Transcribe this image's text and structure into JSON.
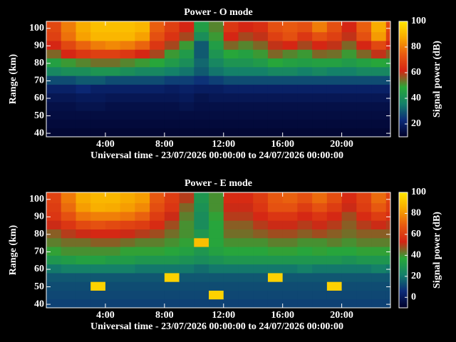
{
  "chart_data": [
    {
      "type": "heatmap",
      "title": "Power - O mode",
      "x_label": "Universal time - 23/07/2026 00:00:00 to 24/07/2026 00:00:00",
      "y_label": "Range (km)",
      "colorbar_label": "Signal power (dB)",
      "xlim": [
        0,
        23.3
      ],
      "ylim": [
        38,
        104
      ],
      "xticks": [
        {
          "value": 4,
          "label": "4:00"
        },
        {
          "value": 8,
          "label": "8:00"
        },
        {
          "value": 12,
          "label": "12:00"
        },
        {
          "value": 16,
          "label": "16:00"
        },
        {
          "value": 20,
          "label": "20:00"
        }
      ],
      "yticks": [
        40,
        50,
        60,
        70,
        80,
        90,
        100
      ],
      "clim": [
        10,
        100
      ],
      "cticks": [
        20,
        40,
        60,
        80,
        100
      ],
      "colormap": [
        "#000028",
        "#0c2a78",
        "#14806a",
        "#28a838",
        "#d42414",
        "#e85a10",
        "#f8a800",
        "#ffe600"
      ],
      "xbins": [
        0,
        1,
        2,
        3,
        4,
        5,
        6,
        7,
        8,
        9,
        10,
        11,
        12,
        13,
        14,
        15,
        16,
        17,
        18,
        19,
        20,
        21,
        22,
        23,
        24
      ],
      "ybins": [
        38,
        43,
        48,
        53,
        58,
        63,
        68,
        73,
        78,
        83,
        88,
        93,
        98,
        104
      ],
      "z": [
        [
          12,
          12,
          12,
          12,
          12,
          12,
          12,
          12,
          12,
          12,
          12,
          12,
          12,
          12,
          12,
          12,
          12,
          12,
          12,
          12,
          12,
          12,
          12,
          12
        ],
        [
          13,
          13,
          13,
          13,
          13,
          13,
          13,
          13,
          13,
          13,
          13,
          13,
          13,
          13,
          13,
          13,
          13,
          13,
          13,
          13,
          13,
          13,
          13,
          13
        ],
        [
          14,
          14,
          14,
          14,
          14,
          14,
          14,
          14,
          14,
          14,
          14,
          14,
          14,
          14,
          14,
          14,
          14,
          14,
          14,
          14,
          14,
          14,
          14,
          14
        ],
        [
          15,
          15,
          16,
          16,
          15,
          15,
          15,
          15,
          15,
          16,
          15,
          15,
          15,
          15,
          15,
          15,
          15,
          15,
          15,
          15,
          15,
          15,
          15,
          15
        ],
        [
          17,
          17,
          18,
          18,
          17,
          17,
          17,
          17,
          17,
          18,
          16,
          17,
          17,
          17,
          17,
          17,
          17,
          17,
          17,
          17,
          17,
          17,
          17,
          17
        ],
        [
          20,
          20,
          22,
          20,
          20,
          20,
          20,
          20,
          19,
          20,
          19,
          19,
          20,
          20,
          20,
          20,
          20,
          20,
          20,
          20,
          20,
          20,
          20,
          20
        ],
        [
          28,
          28,
          30,
          30,
          28,
          28,
          28,
          28,
          26,
          26,
          24,
          26,
          28,
          28,
          28,
          28,
          28,
          28,
          28,
          28,
          28,
          28,
          28,
          28
        ],
        [
          38,
          40,
          40,
          42,
          42,
          40,
          38,
          38,
          36,
          34,
          30,
          34,
          36,
          36,
          36,
          38,
          38,
          36,
          38,
          36,
          36,
          38,
          38,
          38
        ],
        [
          46,
          50,
          52,
          54,
          54,
          52,
          50,
          48,
          44,
          40,
          32,
          38,
          42,
          42,
          44,
          48,
          46,
          45,
          46,
          46,
          44,
          46,
          48,
          46
        ],
        [
          55,
          62,
          66,
          68,
          68,
          66,
          62,
          58,
          50,
          44,
          30,
          42,
          48,
          46,
          50,
          55,
          52,
          50,
          55,
          54,
          50,
          55,
          60,
          56
        ],
        [
          62,
          70,
          76,
          80,
          82,
          80,
          76,
          66,
          58,
          50,
          30,
          45,
          55,
          52,
          55,
          60,
          62,
          58,
          62,
          60,
          55,
          62,
          70,
          62
        ],
        [
          68,
          78,
          86,
          90,
          90,
          90,
          86,
          72,
          65,
          58,
          40,
          50,
          62,
          58,
          60,
          68,
          72,
          66,
          72,
          68,
          60,
          72,
          85,
          68
        ],
        [
          70,
          80,
          88,
          92,
          92,
          92,
          90,
          75,
          68,
          62,
          45,
          52,
          66,
          62,
          64,
          72,
          74,
          72,
          80,
          72,
          62,
          75,
          88,
          70
        ]
      ]
    },
    {
      "type": "heatmap",
      "title": "Power - E mode",
      "x_label": "Universal time - 23/07/2026 00:00:00 to 24/07/2026 00:00:00",
      "y_label": "Range (km)",
      "colorbar_label": "Signal power (dB)",
      "xlim": [
        0,
        23.3
      ],
      "ylim": [
        38,
        104
      ],
      "xticks": [
        {
          "value": 4,
          "label": "4:00"
        },
        {
          "value": 8,
          "label": "8:00"
        },
        {
          "value": 12,
          "label": "12:00"
        },
        {
          "value": 16,
          "label": "16:00"
        },
        {
          "value": 20,
          "label": "20:00"
        }
      ],
      "yticks": [
        40,
        50,
        60,
        70,
        80,
        90,
        100
      ],
      "clim": [
        -10,
        100
      ],
      "cticks": [
        0,
        20,
        40,
        60,
        80,
        100
      ],
      "colormap": [
        "#000028",
        "#0c2a78",
        "#14806a",
        "#28a838",
        "#d42414",
        "#e85a10",
        "#f8a800",
        "#ffe600"
      ],
      "xbins": [
        0,
        1,
        2,
        3,
        4,
        5,
        6,
        7,
        8,
        9,
        10,
        11,
        12,
        13,
        14,
        15,
        16,
        17,
        18,
        19,
        20,
        21,
        22,
        23,
        24
      ],
      "ybins": [
        38,
        43,
        48,
        53,
        58,
        63,
        68,
        73,
        78,
        83,
        88,
        93,
        98,
        104
      ],
      "z": [
        [
          10,
          10,
          10,
          10,
          10,
          10,
          10,
          10,
          10,
          10,
          10,
          10,
          10,
          10,
          10,
          10,
          10,
          10,
          10,
          10,
          10,
          10,
          10,
          10
        ],
        [
          11,
          11,
          11,
          11,
          11,
          11,
          11,
          11,
          11,
          11,
          11,
          95,
          11,
          11,
          11,
          11,
          11,
          11,
          11,
          11,
          11,
          11,
          11,
          11
        ],
        [
          12,
          12,
          12,
          95,
          12,
          12,
          12,
          12,
          12,
          12,
          12,
          12,
          12,
          12,
          12,
          12,
          12,
          12,
          12,
          95,
          12,
          12,
          12,
          12
        ],
        [
          14,
          14,
          14,
          14,
          14,
          14,
          14,
          14,
          95,
          14,
          14,
          14,
          14,
          14,
          14,
          95,
          14,
          14,
          14,
          14,
          14,
          14,
          14,
          14
        ],
        [
          20,
          22,
          22,
          22,
          22,
          22,
          20,
          20,
          20,
          20,
          18,
          20,
          20,
          20,
          20,
          20,
          20,
          22,
          20,
          20,
          20,
          20,
          22,
          20
        ],
        [
          30,
          32,
          34,
          34,
          32,
          32,
          30,
          30,
          30,
          28,
          26,
          28,
          30,
          30,
          30,
          30,
          30,
          30,
          30,
          30,
          28,
          30,
          30,
          30
        ],
        [
          38,
          40,
          40,
          40,
          40,
          38,
          38,
          38,
          36,
          34,
          30,
          34,
          36,
          36,
          36,
          38,
          38,
          36,
          38,
          36,
          36,
          38,
          38,
          38
        ],
        [
          42,
          44,
          44,
          46,
          46,
          44,
          42,
          42,
          40,
          38,
          90,
          36,
          40,
          40,
          40,
          42,
          42,
          40,
          40,
          42,
          40,
          42,
          42,
          42
        ],
        [
          46,
          50,
          52,
          54,
          54,
          52,
          50,
          48,
          44,
          40,
          30,
          36,
          44,
          44,
          46,
          48,
          48,
          46,
          48,
          46,
          44,
          46,
          46,
          46
        ],
        [
          52,
          58,
          64,
          66,
          64,
          62,
          60,
          55,
          48,
          40,
          26,
          36,
          46,
          46,
          50,
          52,
          52,
          50,
          52,
          50,
          46,
          50,
          52,
          50
        ],
        [
          58,
          66,
          74,
          76,
          76,
          74,
          70,
          60,
          52,
          42,
          26,
          38,
          50,
          50,
          54,
          58,
          58,
          54,
          58,
          54,
          48,
          55,
          60,
          56
        ],
        [
          60,
          72,
          82,
          86,
          85,
          82,
          78,
          65,
          58,
          45,
          28,
          40,
          52,
          52,
          58,
          66,
          66,
          60,
          66,
          60,
          52,
          60,
          68,
          60
        ],
        [
          62,
          75,
          85,
          88,
          88,
          85,
          82,
          68,
          60,
          50,
          30,
          40,
          55,
          55,
          60,
          68,
          70,
          66,
          72,
          65,
          55,
          62,
          72,
          62
        ]
      ]
    }
  ]
}
